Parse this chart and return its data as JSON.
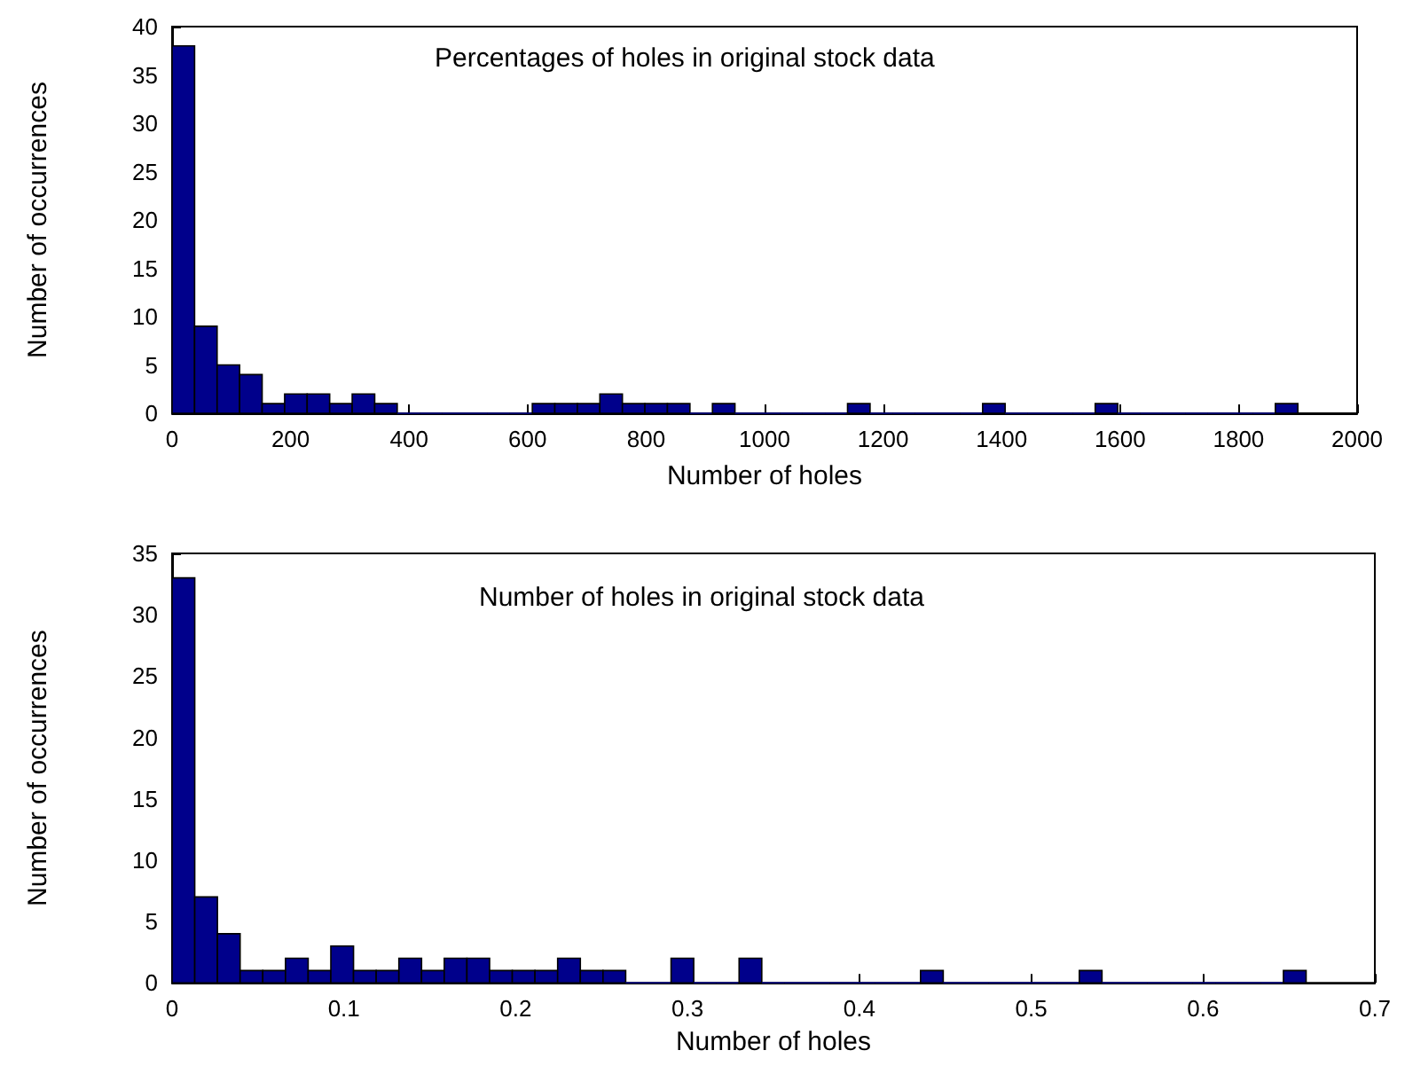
{
  "chart_data": [
    {
      "type": "histogram",
      "color": "#00008b",
      "annotations": [
        "Percentages of holes in original stock data"
      ],
      "xlabel": "Number of holes",
      "ylabel": "Number of occurrences",
      "bins": [
        0,
        38,
        76,
        114,
        152,
        190,
        228,
        266,
        304,
        342,
        380,
        418,
        456,
        494,
        532,
        570,
        608,
        646,
        684,
        722,
        760,
        798,
        836,
        874,
        912,
        950,
        988,
        1026,
        1064,
        1102,
        1140,
        1178,
        1216,
        1254,
        1292,
        1330,
        1368,
        1406,
        1444,
        1482,
        1520,
        1558,
        1596,
        1634,
        1672,
        1710,
        1748,
        1786,
        1824,
        1862,
        1900
      ],
      "values": [
        38,
        9,
        5,
        4,
        1,
        2,
        2,
        1,
        2,
        1,
        0,
        0,
        0,
        0,
        0,
        0,
        1,
        1,
        1,
        2,
        1,
        1,
        1,
        0,
        1,
        0,
        0,
        0,
        0,
        0,
        1,
        0,
        0,
        0,
        0,
        0,
        1,
        0,
        0,
        0,
        0,
        1,
        0,
        0,
        0,
        0,
        0,
        0,
        0,
        1
      ],
      "xlim": [
        0,
        2000
      ],
      "xticks": [
        0,
        200,
        400,
        600,
        800,
        1000,
        1200,
        1400,
        1600,
        1800,
        2000
      ],
      "ylim": [
        0,
        40
      ],
      "yticks": [
        0,
        5,
        10,
        15,
        20,
        25,
        30,
        35,
        40
      ],
      "grid": false
    },
    {
      "type": "histogram",
      "color": "#00008b",
      "annotations": [
        "Number of holes in original stock data"
      ],
      "xlabel": "Number of holes",
      "ylabel": "Number of occurrences",
      "bins": [
        0,
        0.0132,
        0.0264,
        0.0396,
        0.0528,
        0.066,
        0.0792,
        0.0924,
        0.1056,
        0.1188,
        0.132,
        0.1452,
        0.1584,
        0.1716,
        0.1848,
        0.198,
        0.2112,
        0.2244,
        0.2376,
        0.2508,
        0.264,
        0.2772,
        0.2904,
        0.3036,
        0.3168,
        0.33,
        0.3432,
        0.3564,
        0.3696,
        0.3828,
        0.396,
        0.4092,
        0.4224,
        0.4356,
        0.4488,
        0.462,
        0.4752,
        0.4884,
        0.5016,
        0.5148,
        0.528,
        0.5412,
        0.5544,
        0.5676,
        0.5808,
        0.594,
        0.6072,
        0.6204,
        0.6336,
        0.6468,
        0.66
      ],
      "values": [
        33,
        7,
        4,
        1,
        1,
        2,
        1,
        3,
        1,
        1,
        2,
        1,
        2,
        2,
        1,
        1,
        1,
        2,
        1,
        1,
        0,
        0,
        2,
        0,
        0,
        2,
        0,
        0,
        0,
        0,
        0,
        0,
        0,
        1,
        0,
        0,
        0,
        0,
        0,
        0,
        1,
        0,
        0,
        0,
        0,
        0,
        0,
        0,
        0,
        1
      ],
      "xlim": [
        0,
        0.7
      ],
      "xticks": [
        0,
        0.1,
        0.2,
        0.3,
        0.4,
        0.5,
        0.6,
        0.7
      ],
      "ylim": [
        0,
        35
      ],
      "yticks": [
        0,
        5,
        10,
        15,
        20,
        25,
        30,
        35
      ],
      "grid": false
    }
  ]
}
